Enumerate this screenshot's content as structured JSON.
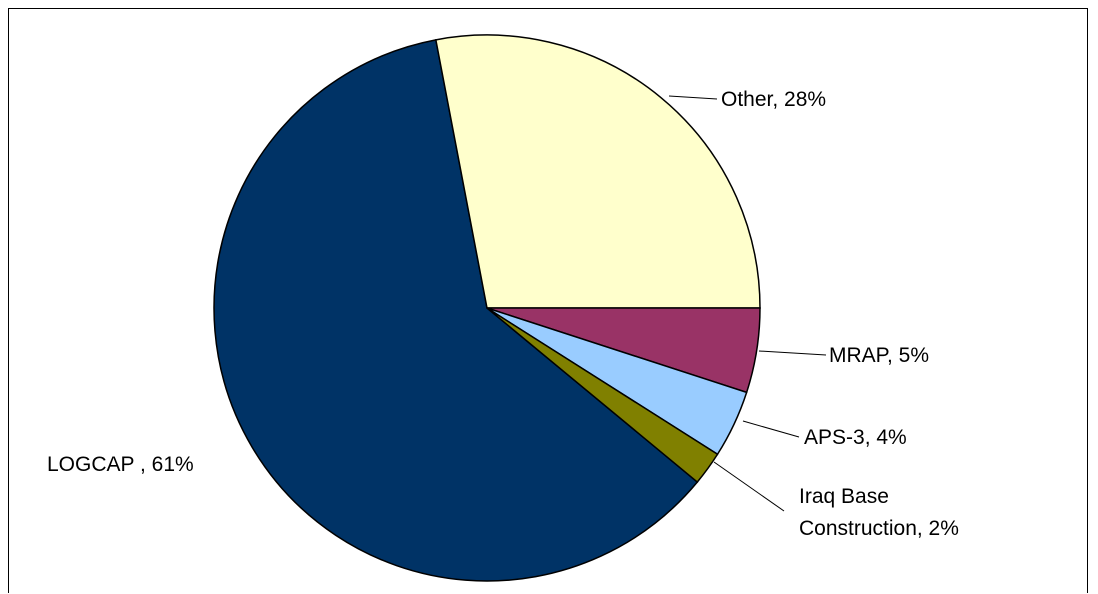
{
  "chart_data": {
    "type": "pie",
    "slices": [
      {
        "name": "Other",
        "label": "Other, 28%",
        "value": 28,
        "color": "#FFFFCC"
      },
      {
        "name": "MRAP",
        "label": "MRAP, 5%",
        "value": 5,
        "color": "#993366"
      },
      {
        "name": "APS-3",
        "label": "APS-3, 4%",
        "value": 4,
        "color": "#99CCFF"
      },
      {
        "name": "Iraq Base Construction",
        "label_lines": [
          "Iraq Base",
          "Construction, 2%"
        ],
        "value": 2,
        "color": "#808000"
      },
      {
        "name": "LOGCAP",
        "label": "LOGCAP , 61%",
        "value": 61,
        "color": "#003366"
      }
    ],
    "start_angle_deg": 0,
    "direction": "clockwise",
    "legend": "none"
  }
}
